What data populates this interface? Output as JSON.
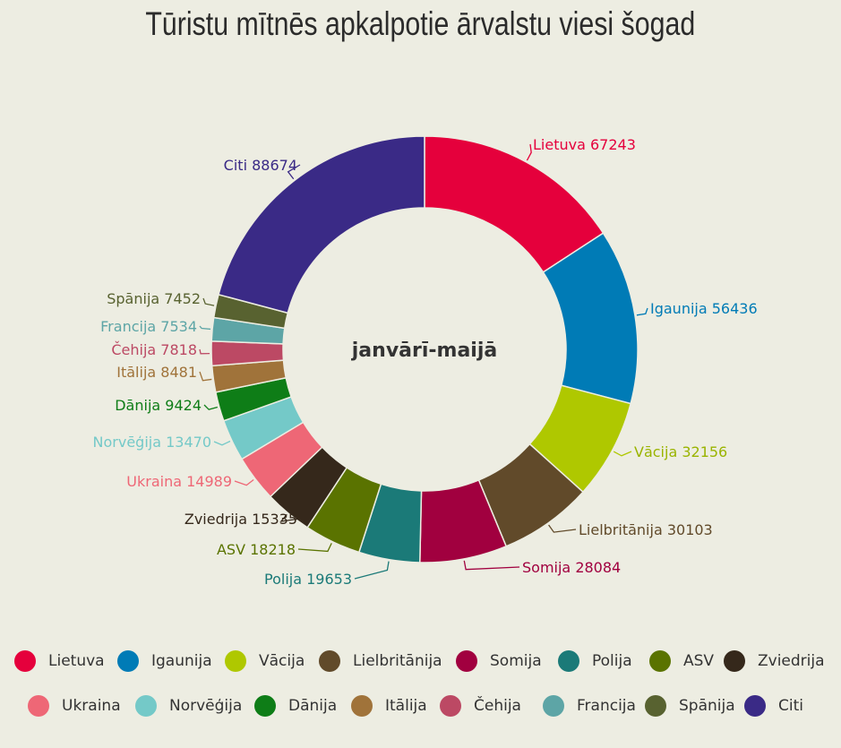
{
  "chart_data": {
    "type": "pie",
    "variant": "donut",
    "title": "Tūristu mītnēs apkalpotie ārvalstu viesi šogad",
    "center_label": "janvārī-maijā",
    "legend_position": "bottom",
    "slices": [
      {
        "label": "Lietuva",
        "value": 67243,
        "color": "#e5003c"
      },
      {
        "label": "Igaunija",
        "value": 56436,
        "color": "#007bb6"
      },
      {
        "label": "Vācija",
        "value": 32156,
        "color": "#afc800"
      },
      {
        "label": "Lielbritānija",
        "value": 30103,
        "color": "#614a2a"
      },
      {
        "label": "Somija",
        "value": 28084,
        "color": "#a1003f"
      },
      {
        "label": "Polija",
        "value": 19653,
        "color": "#1b7a78"
      },
      {
        "label": "ASV",
        "value": 18218,
        "color": "#5a7300"
      },
      {
        "label": "Zviedrija",
        "value": 15335,
        "color": "#35281b"
      },
      {
        "label": "Ukraina",
        "value": 14989,
        "color": "#ee6776"
      },
      {
        "label": "Norvēģija",
        "value": 13470,
        "color": "#74c9c8"
      },
      {
        "label": "Dānija",
        "value": 9424,
        "color": "#0e7d17"
      },
      {
        "label": "Itālija",
        "value": 8481,
        "color": "#a0733a"
      },
      {
        "label": "Čehija",
        "value": 7818,
        "color": "#bc4964"
      },
      {
        "label": "Francija",
        "value": 7534,
        "color": "#5da5a6"
      },
      {
        "label": "Spānija",
        "value": 7452,
        "color": "#586230"
      },
      {
        "label": "Citi",
        "value": 88674,
        "color": "#3a2a86"
      }
    ]
  }
}
